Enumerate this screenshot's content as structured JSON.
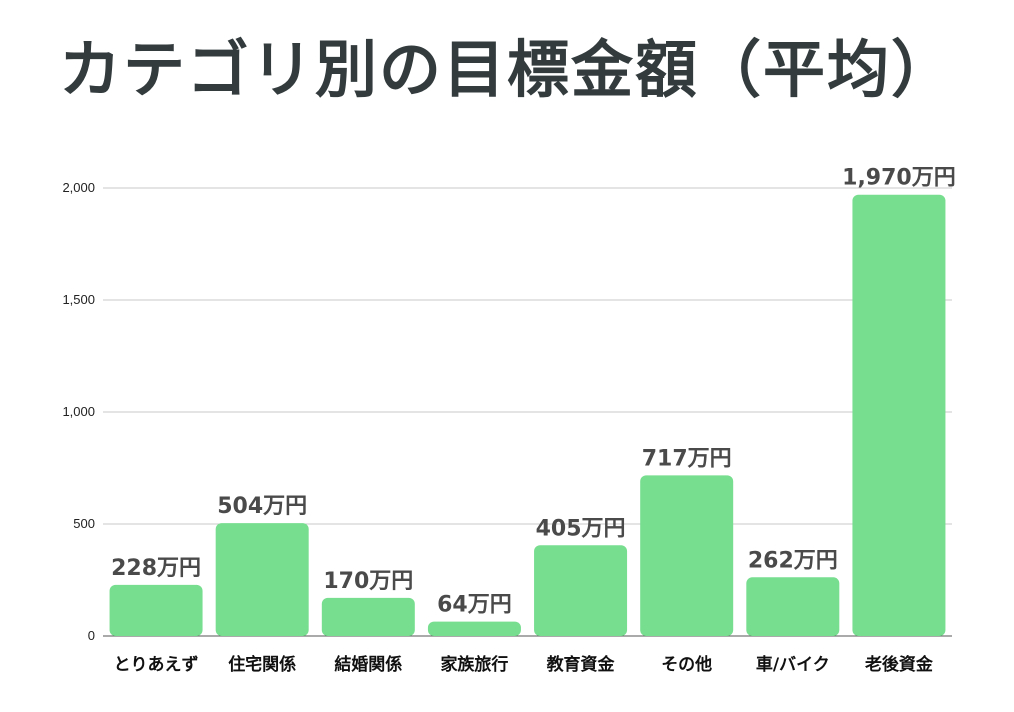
{
  "chart_data": {
    "type": "bar",
    "title": "カテゴリ別の目標金額（平均）",
    "categories": [
      "とりあえず",
      "住宅関係",
      "結婚関係",
      "家族旅行",
      "教育資金",
      "その他",
      "車/バイク",
      "老後資金"
    ],
    "values": [
      228,
      504,
      170,
      64,
      405,
      717,
      262,
      1970
    ],
    "data_labels": [
      "228万円",
      "504万円",
      "170万円",
      "64万円",
      "405万円",
      "717万円",
      "262万円",
      "1,970万円"
    ],
    "y_ticks": [
      0,
      500,
      1000,
      1500,
      2000
    ],
    "y_tick_labels": [
      "0",
      "500",
      "1,000",
      "1,500",
      "2,000"
    ],
    "ylim": [
      0,
      2000
    ],
    "xlabel": "",
    "ylabel": "",
    "grid": true,
    "legend": "none",
    "colors": {
      "bar": "#77dd8f",
      "grid": "#c8c8c8",
      "axis": "#555555",
      "title": "#333b3d",
      "data_label": "#4a4a4a"
    }
  }
}
